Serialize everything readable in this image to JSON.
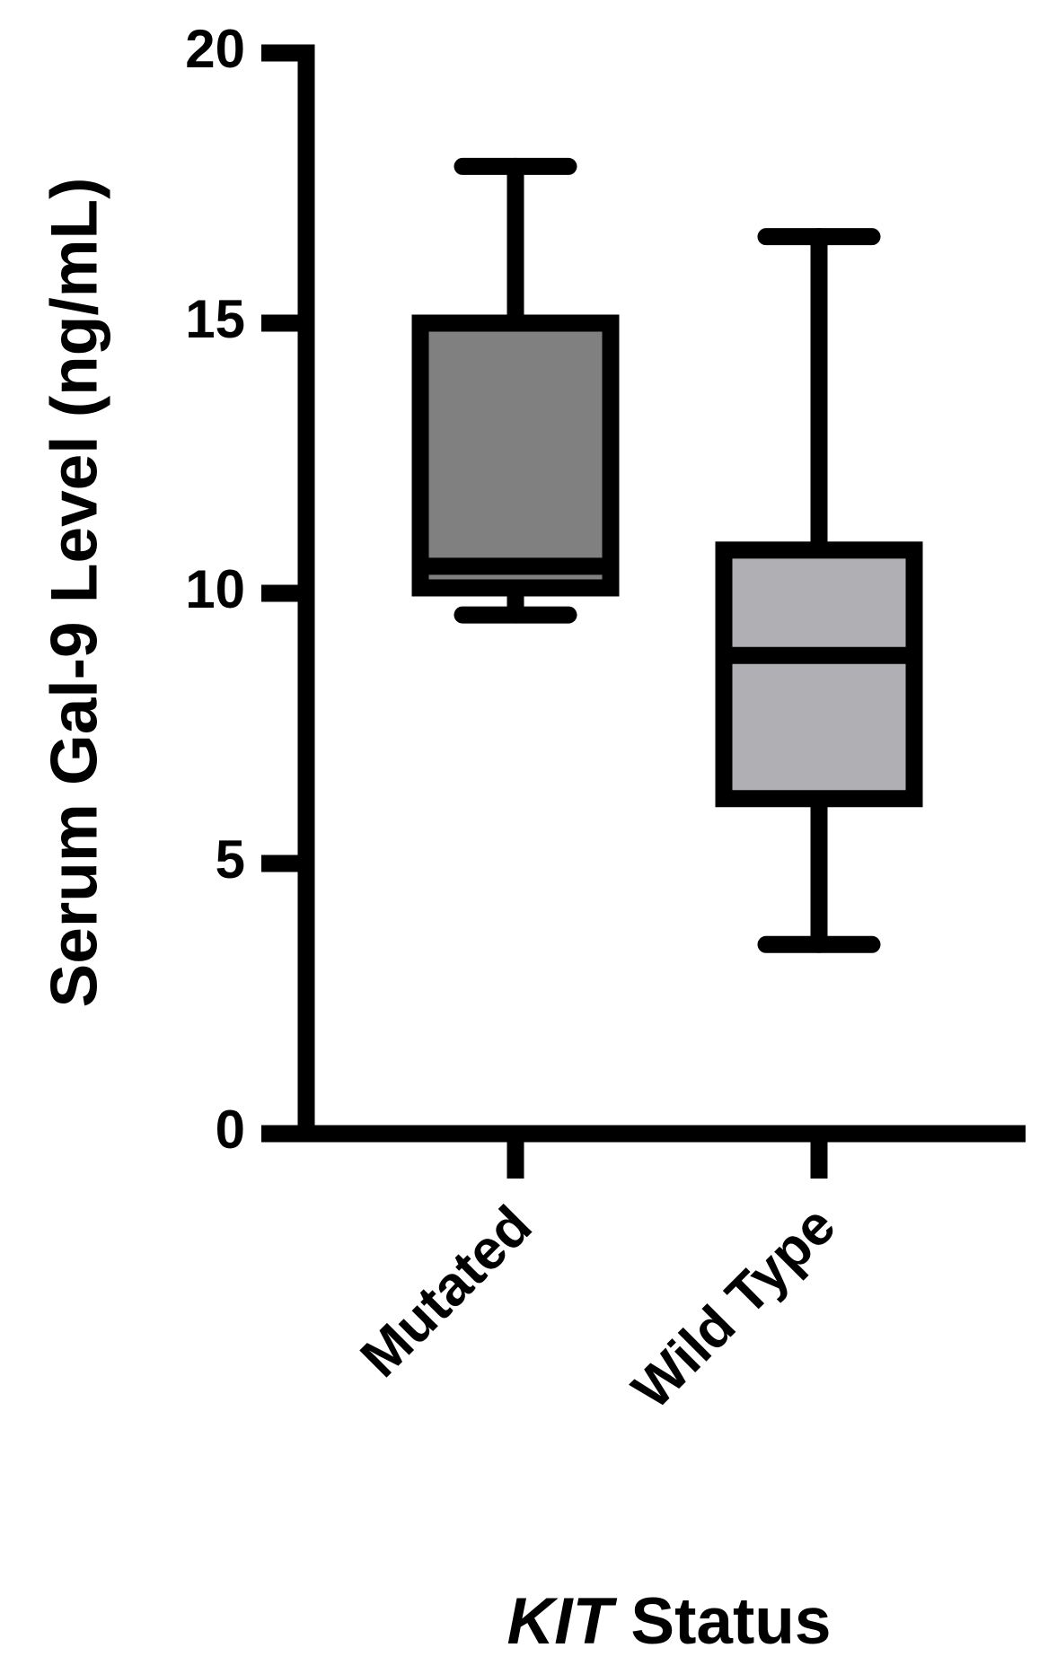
{
  "chart_data": {
    "type": "box",
    "y_label": "Serum Gal-9 Level (ng/mL)",
    "x_label": [
      "KIT",
      "Status"
    ],
    "categories": [
      "Mutated",
      "Wild Type"
    ],
    "boxes": [
      {
        "min": 9.6,
        "q1": 10.1,
        "median": 10.5,
        "q3": 15.0,
        "max": 17.9,
        "color": "#808080"
      },
      {
        "min": 3.5,
        "q1": 6.2,
        "median": 8.85,
        "q3": 10.8,
        "max": 16.6,
        "color": "#b0b0b4"
      }
    ],
    "ylim": [
      0,
      20
    ],
    "yticks": [
      0,
      5,
      10,
      15,
      20
    ]
  }
}
